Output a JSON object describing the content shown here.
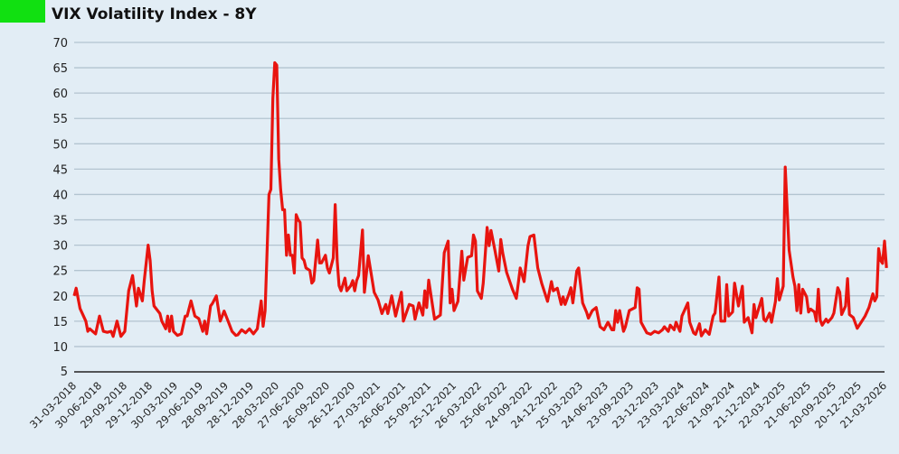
{
  "colors": {
    "badge": "#11e011",
    "line": "#e8140f",
    "grid": "#b3c4d0",
    "axis": "#222222"
  },
  "chart_data": {
    "type": "line",
    "title": "VIX Volatility Index - 8Y",
    "xlabel": "",
    "ylabel": "",
    "ylim": [
      5,
      70
    ],
    "yticks": [
      5,
      10,
      15,
      20,
      25,
      30,
      35,
      40,
      45,
      50,
      55,
      60,
      65,
      70
    ],
    "x_unit": "weeks since 31-03-2018",
    "xlim": [
      0,
      417
    ],
    "xtick_weeks": [
      0,
      13,
      26,
      39,
      52,
      65,
      78,
      91,
      104,
      117,
      130,
      143,
      156,
      169,
      182,
      195,
      208,
      221,
      234,
      247,
      260,
      273,
      286,
      299,
      312,
      325,
      338,
      351,
      364,
      377,
      390,
      403,
      416
    ],
    "xtick_labels": [
      "31-03-2018",
      "30-06-2018",
      "29-09-2018",
      "29-12-2018",
      "30-03-2019",
      "29-06-2019",
      "28-09-2019",
      "28-12-2019",
      "28-03-2020",
      "27-06-2020",
      "26-09-2020",
      "26-12-2020",
      "27-03-2021",
      "26-06-2021",
      "25-09-2021",
      "25-12-2021",
      "26-03-2022",
      "25-06-2022",
      "24-09-2022",
      "24-12-2022",
      "25-03-2023",
      "24-06-2023",
      "23-09-2023",
      "23-12-2023",
      "23-03-2024",
      "22-06-2024",
      "21-09-2024",
      "21-12-2024",
      "22-03-2025",
      "21-06-2025",
      "20-09-2025",
      "20-12-2025",
      "21-03-2026"
    ],
    "grid": true,
    "series": [
      {
        "name": "VIX",
        "x": [
          0,
          1,
          3,
          6,
          7,
          8,
          11,
          13,
          15,
          17,
          19,
          20,
          22,
          24,
          26,
          28,
          30,
          32,
          33,
          35,
          36,
          38,
          39,
          40,
          41,
          44,
          45,
          47,
          48,
          49,
          50,
          51,
          53,
          55,
          57,
          58,
          60,
          62,
          64,
          66,
          67,
          68,
          70,
          71,
          73,
          75,
          77,
          79,
          81,
          83,
          84,
          86,
          88,
          90,
          92,
          94,
          96,
          97,
          98,
          100,
          101,
          102,
          103,
          104,
          105,
          106,
          107,
          108,
          109,
          110,
          111,
          112,
          113,
          114,
          115,
          116,
          117,
          118,
          119,
          121,
          122,
          123,
          125,
          126,
          127,
          129,
          130,
          131,
          133,
          134,
          135,
          136,
          137,
          139,
          140,
          142,
          143,
          144,
          145,
          146,
          148,
          149,
          151,
          154,
          156,
          158,
          160,
          161,
          163,
          165,
          168,
          169,
          172,
          174,
          175,
          177,
          179,
          180,
          181,
          182,
          185,
          188,
          190,
          192,
          193,
          194,
          195,
          197,
          199,
          200,
          202,
          204,
          205,
          206,
          207,
          209,
          210,
          212,
          213,
          214,
          216,
          218,
          219,
          220,
          222,
          225,
          227,
          229,
          231,
          233,
          234,
          236,
          238,
          240,
          243,
          245,
          246,
          248,
          250,
          251,
          252,
          254,
          255,
          256,
          258,
          259,
          261,
          263,
          264,
          266,
          268,
          270,
          272,
          274,
          276,
          277,
          278,
          279,
          280,
          282,
          283,
          285,
          288,
          289,
          290,
          291,
          294,
          296,
          298,
          300,
          302,
          303,
          305,
          306,
          308,
          309,
          311,
          312,
          315,
          316,
          318,
          319,
          321,
          322,
          324,
          326,
          328,
          329,
          331,
          332,
          334,
          335,
          336,
          338,
          339,
          341,
          343,
          344,
          346,
          348,
          349,
          350,
          353,
          354,
          355,
          357,
          358,
          360,
          361,
          362,
          364,
          365,
          366,
          367,
          369,
          370,
          371,
          372,
          373,
          374,
          376,
          377,
          378,
          380,
          381,
          382,
          383,
          384,
          386,
          387,
          389,
          390,
          392,
          393,
          394,
          396,
          397,
          398,
          400,
          402,
          404,
          406,
          408,
          410,
          411,
          412,
          413,
          414,
          415,
          416,
          417
        ],
        "values": [
          20,
          21.5,
          17.5,
          15,
          13,
          13.5,
          12.5,
          16,
          13,
          12.8,
          13,
          12,
          15,
          12,
          13,
          21,
          24,
          18,
          21.5,
          19,
          23,
          30,
          27,
          21,
          18,
          16.5,
          15,
          13.5,
          16,
          13,
          16,
          13,
          12.2,
          12.5,
          16,
          16,
          19,
          16,
          15.5,
          13,
          15,
          12.5,
          18,
          18.5,
          20,
          15,
          17,
          15,
          13,
          12.2,
          12.3,
          13.3,
          12.7,
          13.5,
          12.5,
          13.5,
          19,
          14,
          17,
          40,
          41,
          59,
          66,
          65.5,
          47,
          41,
          37,
          37,
          28,
          32,
          28,
          28,
          24.5,
          36,
          35,
          34.5,
          27.5,
          27,
          25.5,
          25,
          22.5,
          23,
          31,
          26.5,
          26.5,
          28,
          25.5,
          24.5,
          27.5,
          38,
          27,
          22,
          21,
          23.5,
          21,
          22,
          23,
          21,
          23,
          24,
          33,
          20.7,
          27.9,
          20.7,
          19.2,
          16.5,
          18.3,
          16.5,
          20,
          16,
          20.7,
          15,
          18.3,
          18,
          15.4,
          18.6,
          16.2,
          21,
          17.7,
          23.1,
          15.4,
          16.2,
          28.5,
          30.8,
          18.6,
          21.3,
          17.1,
          18.9,
          28.8,
          23.1,
          27.6,
          27.9,
          32,
          30.8,
          21,
          19.5,
          22.5,
          33.5,
          29.9,
          32.9,
          29,
          24.9,
          31.1,
          28.5,
          24.6,
          21.3,
          19.5,
          25.5,
          22.8,
          29.9,
          31.7,
          32,
          25.5,
          22.5,
          18.9,
          22.8,
          21,
          21.5,
          18.3,
          19.8,
          18.3,
          20.4,
          21.6,
          18.6,
          24.9,
          25.5,
          18.6,
          16.8,
          15.6,
          17.1,
          17.7,
          13.9,
          13.3,
          14.8,
          13.3,
          13.3,
          17.1,
          14.8,
          17.1,
          13,
          13.9,
          17.1,
          17.7,
          21.6,
          21.3,
          14.8,
          12.7,
          12.4,
          13,
          12.7,
          13.3,
          13.9,
          13,
          14.2,
          13.3,
          14.8,
          13,
          16,
          18.6,
          14.8,
          12.7,
          12.4,
          14.5,
          12.1,
          13.3,
          12.4,
          16,
          16.6,
          23.7,
          15,
          15,
          22.2,
          16,
          16.8,
          22.5,
          18,
          21.9,
          14.8,
          15.7,
          12.7,
          18.3,
          15.7,
          19.5,
          15.4,
          15,
          16.6,
          14.8,
          18.9,
          23.4,
          19.2,
          21.9,
          45.4,
          37.4,
          29,
          23.7,
          21.9,
          17.1,
          22.2,
          16.6,
          21.3,
          19.8,
          16.8,
          17.4,
          16.8,
          15,
          21.3,
          15.2,
          14.2,
          15.4,
          14.8,
          15.7,
          16.6,
          21.6,
          20.7,
          16.3,
          18,
          23.4,
          16.3,
          15.7,
          13.6,
          14.8,
          16,
          17.7,
          20.4,
          19,
          19.8,
          29.3,
          27,
          26.4,
          30.8,
          25.5
        ]
      }
    ]
  }
}
